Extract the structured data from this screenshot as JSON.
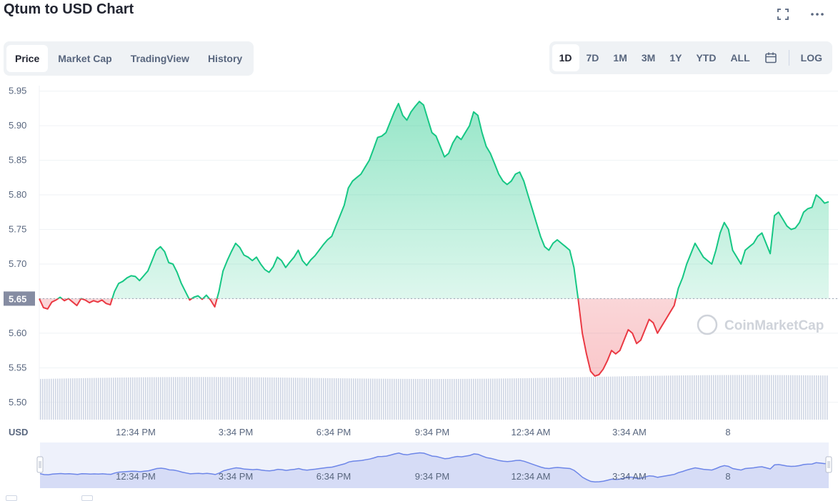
{
  "header": {
    "title": "Qtum to USD Chart"
  },
  "tabs": [
    "Price",
    "Market Cap",
    "TradingView",
    "History"
  ],
  "active_tab": "Price",
  "ranges": [
    "1D",
    "7D",
    "1M",
    "3M",
    "1Y",
    "YTD",
    "ALL"
  ],
  "active_range": "1D",
  "log_label": "LOG",
  "currency_label": "USD",
  "watermark": "CoinMarketCap",
  "colors": {
    "up": "#16c784",
    "down": "#ea3943",
    "grid": "#eff2f5",
    "nav_fill": "#d6dcf6",
    "nav_line": "#6d86e8"
  },
  "chart_data": {
    "type": "line",
    "title": "Qtum to USD Chart",
    "ylabel": "USD",
    "ylim": [
      5.475,
      5.96
    ],
    "yticks": [
      "5.95",
      "5.90",
      "5.85",
      "5.80",
      "5.75",
      "5.70",
      "5.65",
      "5.60",
      "5.55",
      "5.50"
    ],
    "reference_price": 5.65,
    "reference_label": "5.65",
    "x_ticks": [
      "12:34 PM",
      "3:34 PM",
      "6:34 PM",
      "9:34 PM",
      "12:34 AM",
      "3:34 AM",
      "8"
    ],
    "grid": true,
    "series": [
      {
        "values": [
          5.65,
          5.637,
          5.635,
          5.645,
          5.648,
          5.652,
          5.647,
          5.65,
          5.645,
          5.64,
          5.65,
          5.648,
          5.644,
          5.647,
          5.645,
          5.648,
          5.643,
          5.641,
          5.66,
          5.672,
          5.675,
          5.68,
          5.683,
          5.682,
          5.676,
          5.683,
          5.69,
          5.705,
          5.72,
          5.725,
          5.718,
          5.702,
          5.7,
          5.688,
          5.672,
          5.66,
          5.648,
          5.652,
          5.654,
          5.649,
          5.655,
          5.648,
          5.638,
          5.66,
          5.69,
          5.705,
          5.718,
          5.73,
          5.724,
          5.713,
          5.71,
          5.705,
          5.71,
          5.7,
          5.692,
          5.688,
          5.696,
          5.71,
          5.705,
          5.695,
          5.703,
          5.71,
          5.72,
          5.705,
          5.698,
          5.706,
          5.712,
          5.72,
          5.728,
          5.735,
          5.74,
          5.755,
          5.77,
          5.785,
          5.81,
          5.82,
          5.825,
          5.83,
          5.84,
          5.85,
          5.866,
          5.883,
          5.885,
          5.89,
          5.905,
          5.92,
          5.932,
          5.915,
          5.908,
          5.92,
          5.928,
          5.935,
          5.93,
          5.91,
          5.89,
          5.885,
          5.87,
          5.855,
          5.86,
          5.875,
          5.885,
          5.88,
          5.89,
          5.9,
          5.92,
          5.915,
          5.89,
          5.87,
          5.86,
          5.845,
          5.83,
          5.82,
          5.815,
          5.82,
          5.83,
          5.833,
          5.82,
          5.8,
          5.78,
          5.76,
          5.74,
          5.725,
          5.72,
          5.73,
          5.735,
          5.73,
          5.725,
          5.72,
          5.695,
          5.65,
          5.6,
          5.57,
          5.545,
          5.538,
          5.54,
          5.548,
          5.56,
          5.575,
          5.57,
          5.575,
          5.59,
          5.605,
          5.6,
          5.585,
          5.59,
          5.605,
          5.62,
          5.615,
          5.6,
          5.61,
          5.62,
          5.63,
          5.64,
          5.665,
          5.68,
          5.7,
          5.715,
          5.73,
          5.72,
          5.71,
          5.705,
          5.7,
          5.72,
          5.745,
          5.76,
          5.75,
          5.72,
          5.71,
          5.7,
          5.72,
          5.725,
          5.73,
          5.74,
          5.745,
          5.73,
          5.715,
          5.77,
          5.775,
          5.765,
          5.755,
          5.75,
          5.752,
          5.76,
          5.775,
          5.78,
          5.782,
          5.8,
          5.795,
          5.788,
          5.79
        ]
      }
    ]
  }
}
